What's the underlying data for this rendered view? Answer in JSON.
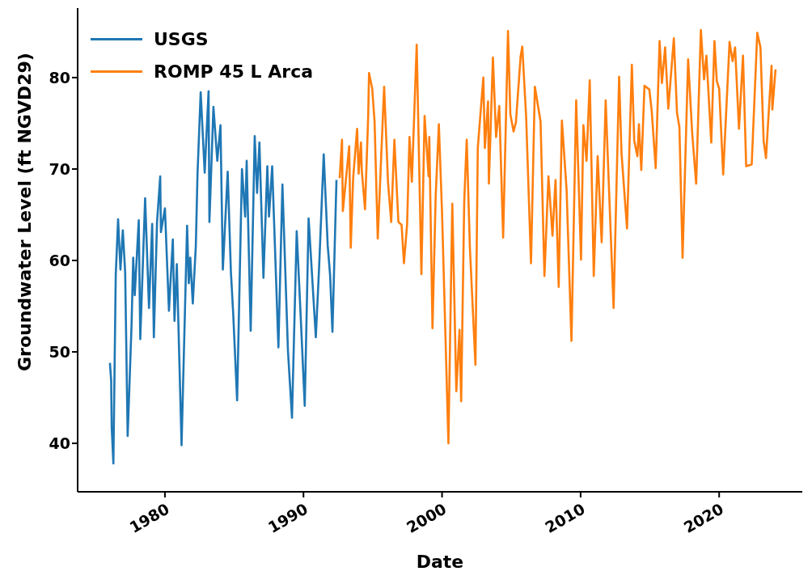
{
  "chart_data": {
    "type": "line",
    "xlabel": "Date",
    "ylabel": "Groundwater Level (ft NGVD29)",
    "xlim": [
      1973.7,
      2026.0
    ],
    "ylim": [
      34.7,
      87.6
    ],
    "xticks": [
      1980,
      1990,
      2000,
      2010,
      2020
    ],
    "yticks": [
      40,
      50,
      60,
      70,
      80
    ],
    "legend": "top left",
    "grid": false,
    "marker": "none",
    "line_style": "solid",
    "series": [
      {
        "name": "USGS",
        "color": "#1f77b4",
        "x": [
          1976.03,
          1976.12,
          1976.16,
          1976.28,
          1976.45,
          1976.62,
          1976.79,
          1976.96,
          1977.13,
          1977.31,
          1977.59,
          1977.71,
          1977.82,
          1978.11,
          1978.22,
          1978.57,
          1978.85,
          1979.08,
          1979.2,
          1979.43,
          1979.66,
          1979.71,
          1980,
          1980.29,
          1980.57,
          1980.69,
          1980.86,
          1981.2,
          1981.6,
          1981.72,
          1981.83,
          1982.01,
          1982.23,
          1982.35,
          1982.58,
          1982.87,
          1983.15,
          1983.21,
          1983.5,
          1983.78,
          1984.01,
          1984.18,
          1984.53,
          1984.76,
          1984.93,
          1985.21,
          1985.56,
          1985.79,
          1985.9,
          1986.19,
          1986.48,
          1986.65,
          1986.82,
          1987.11,
          1987.39,
          1987.51,
          1987.74,
          1988.19,
          1988.48,
          1988.88,
          1989.17,
          1989.51,
          1989.8,
          1990.09,
          1990.37,
          1990.89,
          1991.12,
          1991.46,
          1991.75,
          1991.92,
          1992.09,
          1992.38
        ],
        "values": [
          48.8,
          46.9,
          41.7,
          37.8,
          58.4,
          64.5,
          59,
          63.3,
          58.7,
          40.8,
          52.9,
          60.3,
          56.2,
          64.4,
          51.4,
          66.8,
          54.8,
          64,
          51.6,
          64.2,
          69.2,
          63.1,
          65.7,
          54.5,
          62.3,
          53.4,
          59.6,
          39.8,
          63.8,
          57.5,
          60.3,
          55.3,
          61.6,
          69.4,
          78.4,
          69.6,
          78.5,
          64.2,
          76.8,
          70.9,
          74.8,
          59,
          69.7,
          58.8,
          54.1,
          44.7,
          70,
          64.8,
          70.9,
          52.3,
          73.6,
          67.4,
          72.9,
          58.1,
          70.3,
          64.8,
          70.3,
          50.5,
          68.3,
          50.1,
          42.8,
          63.2,
          53.8,
          44.1,
          64.6,
          51.6,
          59,
          71.6,
          61.6,
          58.4,
          52.2,
          68.8
        ]
      },
      {
        "name": "ROMP 45 L Arca",
        "color": "#ff7f0e",
        "x": [
          1992.61,
          1992.78,
          1992.84,
          1993.3,
          1993.41,
          1993.58,
          1993.87,
          1993.98,
          1994.15,
          1994.21,
          1994.44,
          1994.67,
          1994.73,
          1994.96,
          1995.13,
          1995.36,
          1995.82,
          1996.1,
          1996.33,
          1996.56,
          1996.85,
          1997.08,
          1997.25,
          1997.48,
          1997.65,
          1997.82,
          1998.17,
          1998.51,
          1998.74,
          1999.03,
          1999.08,
          1999.31,
          1999.54,
          1999.77,
          2000,
          2000.46,
          2000.74,
          2001.03,
          2001.26,
          2001.38,
          2001.6,
          2001.78,
          2002.01,
          2002.41,
          2002.58,
          2002.98,
          2003.09,
          2003.32,
          2003.38,
          2003.67,
          2003.9,
          2004.13,
          2004.41,
          2004.76,
          2004.93,
          2005.16,
          2005.33,
          2005.67,
          2005.79,
          2006.07,
          2006.42,
          2006.7,
          2007.11,
          2007.39,
          2007.68,
          2007.97,
          2008.19,
          2008.42,
          2008.65,
          2008.99,
          2009.34,
          2009.68,
          2010.03,
          2010.2,
          2010.43,
          2010.66,
          2010.95,
          2011.23,
          2011.52,
          2011.81,
          2012.03,
          2012.38,
          2012.78,
          2012.95,
          2013.35,
          2013.7,
          2013.87,
          2014.1,
          2014.21,
          2014.38,
          2014.61,
          2014.96,
          2015.13,
          2015.42,
          2015.7,
          2015.87,
          2016.1,
          2016.33,
          2016.73,
          2016.96,
          2017.13,
          2017.36,
          2017.76,
          2018.05,
          2018.34,
          2018.68,
          2018.91,
          2019.08,
          2019.43,
          2019.66,
          2019.83,
          2020,
          2020.29,
          2020.75,
          2020.97,
          2021.15,
          2021.43,
          2021.72,
          2021.95,
          2022.35,
          2022.75,
          2022.98,
          2023.21,
          2023.38,
          2023.78,
          2023.84,
          2024.07
        ],
        "values": [
          69,
          73.2,
          65.4,
          72.5,
          61.4,
          68.9,
          74.4,
          69.5,
          72.9,
          69.8,
          65.6,
          75.8,
          80.5,
          78.8,
          75.2,
          62.4,
          79,
          68.6,
          64.2,
          73.2,
          64.2,
          63.9,
          59.7,
          64,
          73.5,
          68.6,
          83.6,
          58.5,
          75.8,
          69.2,
          73.5,
          52.6,
          67,
          74.9,
          65.2,
          40,
          66.2,
          45.7,
          52.4,
          44.6,
          66.4,
          73.2,
          61.4,
          48.6,
          72.3,
          80,
          72.3,
          77.4,
          68.4,
          82.2,
          73.5,
          76.9,
          62.5,
          85.1,
          76,
          74.1,
          75.1,
          82.3,
          83.4,
          75.7,
          59.7,
          79,
          75.2,
          58.3,
          69.2,
          62.7,
          68.8,
          57.1,
          75.3,
          67.7,
          51.2,
          77.5,
          60.1,
          74.8,
          70.9,
          79.7,
          58.3,
          71.4,
          62,
          77.5,
          68.6,
          54.8,
          80.1,
          71.8,
          63.5,
          81.4,
          73.1,
          71.4,
          74.9,
          69.9,
          79.1,
          78.7,
          76.4,
          70.1,
          84,
          79.4,
          83.3,
          76.6,
          84.3,
          76.1,
          74.6,
          60.3,
          82,
          74,
          68.4,
          85.2,
          79.8,
          82.4,
          72.9,
          84,
          79.6,
          78.8,
          69.4,
          83.9,
          81.8,
          83.3,
          74.4,
          82.4,
          70.3,
          70.5,
          84.9,
          83.3,
          73.1,
          71.2,
          81.3,
          76.5,
          80.9
        ]
      }
    ]
  }
}
